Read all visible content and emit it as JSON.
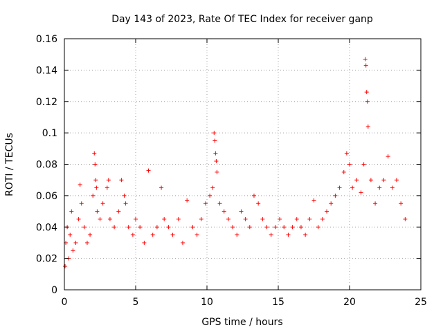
{
  "chart_data": {
    "type": "scatter",
    "title": "Day 143 of 2023, Rate Of TEC Index for receiver ganp",
    "xlabel": "GPS time / hours",
    "ylabel": "ROTI / TECUs",
    "xlim": [
      0,
      25
    ],
    "ylim": [
      0,
      0.16
    ],
    "xticks": [
      0,
      5,
      10,
      15,
      20,
      25
    ],
    "yticks": [
      0,
      0.02,
      0.04,
      0.06,
      0.08,
      0.1,
      0.12,
      0.14,
      0.16
    ],
    "xtick_labels": [
      "0",
      "5",
      "10",
      "15",
      "20",
      "25"
    ],
    "ytick_labels": [
      "0",
      "0.02",
      "0.04",
      "0.06",
      "0.08",
      "0.1",
      "0.12",
      "0.14",
      "0.16"
    ],
    "grid": true,
    "marker": "+",
    "series": [
      {
        "name": "ROTI",
        "color": "#ff0000",
        "x": [
          0.05,
          0.1,
          0.2,
          0.3,
          0.4,
          0.5,
          0.6,
          0.8,
          1.0,
          1.1,
          1.2,
          1.4,
          1.6,
          1.8,
          2.0,
          2.1,
          2.15,
          2.2,
          2.25,
          2.3,
          2.5,
          2.7,
          3.0,
          3.1,
          3.2,
          3.5,
          3.8,
          4.0,
          4.2,
          4.3,
          4.5,
          4.8,
          5.0,
          5.3,
          5.6,
          5.9,
          6.2,
          6.5,
          6.8,
          7.0,
          7.3,
          7.6,
          8.0,
          8.3,
          8.6,
          9.0,
          9.3,
          9.6,
          9.9,
          10.2,
          10.4,
          10.5,
          10.55,
          10.6,
          10.65,
          10.7,
          10.9,
          11.2,
          11.5,
          11.8,
          12.1,
          12.4,
          12.7,
          13.0,
          13.3,
          13.6,
          13.9,
          14.2,
          14.5,
          14.8,
          15.1,
          15.4,
          15.7,
          16.0,
          16.3,
          16.6,
          16.9,
          17.2,
          17.5,
          17.8,
          18.1,
          18.4,
          18.7,
          19.0,
          19.3,
          19.6,
          19.8,
          20.0,
          20.2,
          20.5,
          20.8,
          21.0,
          21.1,
          21.15,
          21.2,
          21.25,
          21.3,
          21.5,
          21.8,
          22.1,
          22.4,
          22.7,
          23.0,
          23.3,
          23.6,
          23.9
        ],
        "y": [
          0.015,
          0.03,
          0.04,
          0.02,
          0.035,
          0.05,
          0.025,
          0.03,
          0.045,
          0.067,
          0.055,
          0.04,
          0.03,
          0.035,
          0.06,
          0.087,
          0.08,
          0.07,
          0.065,
          0.05,
          0.045,
          0.055,
          0.065,
          0.07,
          0.045,
          0.04,
          0.05,
          0.07,
          0.06,
          0.055,
          0.04,
          0.035,
          0.045,
          0.04,
          0.03,
          0.076,
          0.035,
          0.04,
          0.065,
          0.045,
          0.04,
          0.035,
          0.045,
          0.03,
          0.057,
          0.04,
          0.035,
          0.045,
          0.055,
          0.06,
          0.065,
          0.1,
          0.095,
          0.087,
          0.082,
          0.075,
          0.055,
          0.05,
          0.045,
          0.04,
          0.035,
          0.05,
          0.045,
          0.04,
          0.06,
          0.055,
          0.045,
          0.04,
          0.035,
          0.04,
          0.045,
          0.04,
          0.035,
          0.04,
          0.045,
          0.04,
          0.035,
          0.045,
          0.057,
          0.04,
          0.045,
          0.05,
          0.055,
          0.06,
          0.065,
          0.075,
          0.087,
          0.08,
          0.065,
          0.07,
          0.062,
          0.08,
          0.147,
          0.143,
          0.126,
          0.12,
          0.104,
          0.07,
          0.055,
          0.065,
          0.07,
          0.085,
          0.065,
          0.07,
          0.055,
          0.045
        ]
      }
    ]
  }
}
